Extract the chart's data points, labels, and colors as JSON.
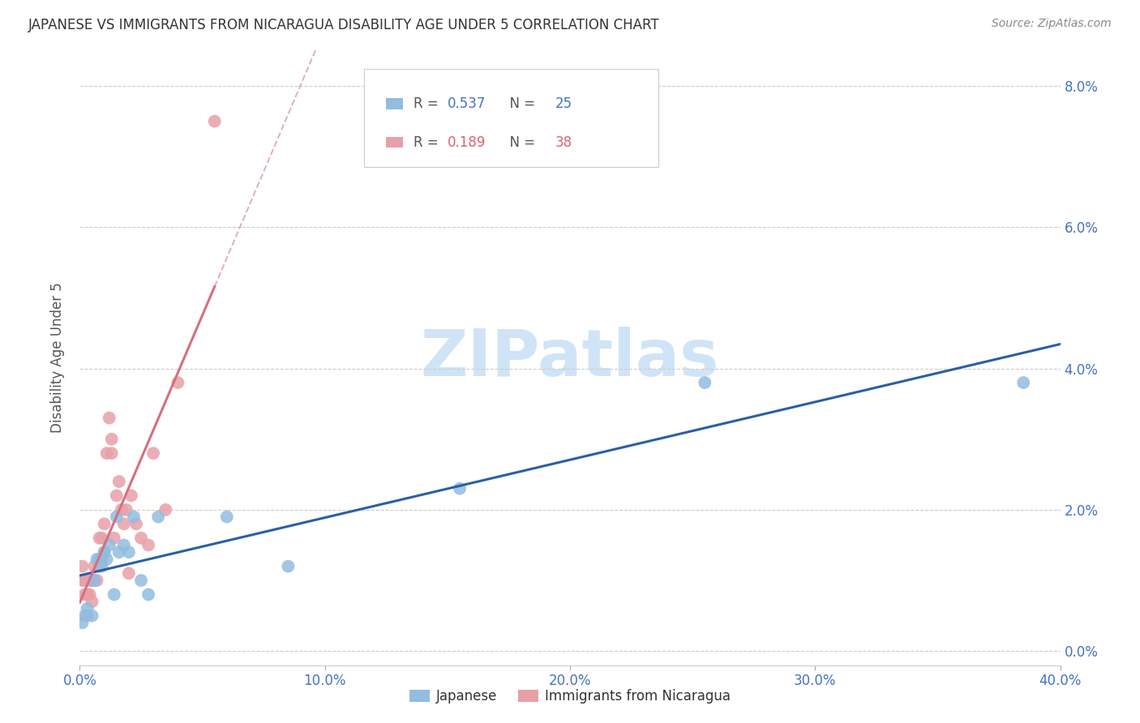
{
  "title": "JAPANESE VS IMMIGRANTS FROM NICARAGUA DISABILITY AGE UNDER 5 CORRELATION CHART",
  "source": "Source: ZipAtlas.com",
  "ylabel": "Disability Age Under 5",
  "xlabel_ticks": [
    "0.0%",
    "10.0%",
    "20.0%",
    "30.0%",
    "40.0%"
  ],
  "xlabel_vals": [
    0.0,
    0.1,
    0.2,
    0.3,
    0.4
  ],
  "ylabel_ticks": [
    "0.0%",
    "2.0%",
    "4.0%",
    "6.0%",
    "8.0%"
  ],
  "ylabel_vals": [
    0.0,
    0.02,
    0.04,
    0.06,
    0.08
  ],
  "xlim": [
    0.0,
    0.4
  ],
  "ylim": [
    -0.002,
    0.085
  ],
  "japanese_color": "#92bce0",
  "nicaragua_color": "#e8a0a8",
  "trendline_japanese_color": "#2a5fa5",
  "trendline_nicaragua_color": "#d47080",
  "watermark": "ZIPatlas",
  "watermark_color": "#d0e4f7",
  "japanese_x": [
    0.001,
    0.002,
    0.003,
    0.005,
    0.006,
    0.007,
    0.008,
    0.009,
    0.01,
    0.011,
    0.012,
    0.014,
    0.015,
    0.016,
    0.018,
    0.02,
    0.022,
    0.025,
    0.028,
    0.032,
    0.06,
    0.085,
    0.155,
    0.255,
    0.385
  ],
  "japanese_y": [
    0.004,
    0.005,
    0.006,
    0.005,
    0.01,
    0.013,
    0.013,
    0.012,
    0.014,
    0.013,
    0.015,
    0.008,
    0.019,
    0.014,
    0.015,
    0.014,
    0.019,
    0.01,
    0.008,
    0.019,
    0.019,
    0.012,
    0.023,
    0.038,
    0.038
  ],
  "nicaragua_x": [
    0.001,
    0.001,
    0.002,
    0.002,
    0.003,
    0.003,
    0.004,
    0.004,
    0.005,
    0.005,
    0.006,
    0.006,
    0.007,
    0.008,
    0.008,
    0.009,
    0.009,
    0.01,
    0.01,
    0.011,
    0.012,
    0.013,
    0.013,
    0.014,
    0.015,
    0.016,
    0.017,
    0.018,
    0.019,
    0.02,
    0.021,
    0.023,
    0.025,
    0.028,
    0.03,
    0.035,
    0.04,
    0.055
  ],
  "nicaragua_y": [
    0.01,
    0.012,
    0.008,
    0.01,
    0.005,
    0.008,
    0.008,
    0.01,
    0.007,
    0.01,
    0.01,
    0.012,
    0.01,
    0.012,
    0.016,
    0.013,
    0.016,
    0.014,
    0.018,
    0.028,
    0.033,
    0.03,
    0.028,
    0.016,
    0.022,
    0.024,
    0.02,
    0.018,
    0.02,
    0.011,
    0.022,
    0.018,
    0.016,
    0.015,
    0.028,
    0.02,
    0.038,
    0.075
  ],
  "legend1_R": "0.537",
  "legend1_N": "25",
  "legend2_R": "0.189",
  "legend2_N": "38"
}
